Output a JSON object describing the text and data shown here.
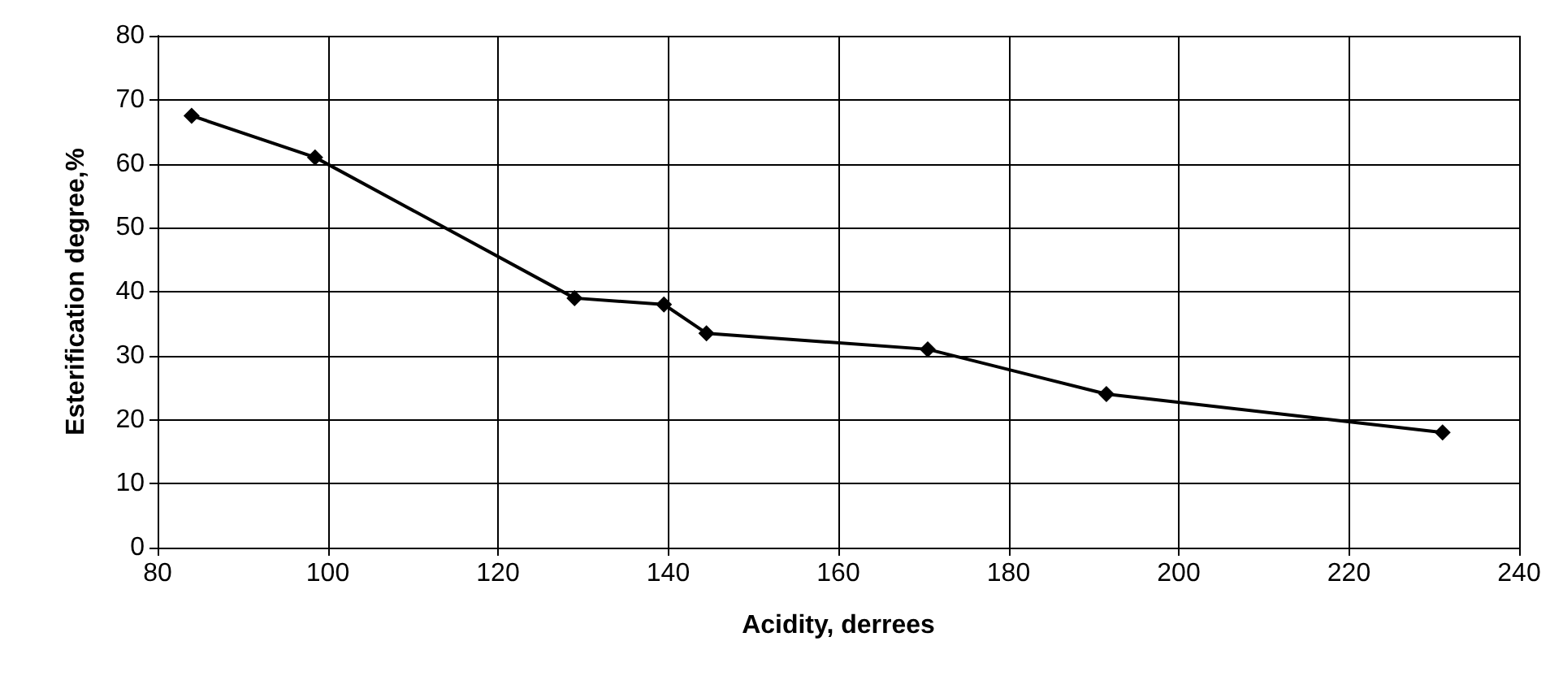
{
  "chart_data": {
    "type": "line",
    "xlabel": "Acidity, derrees",
    "ylabel": "Esterification degree,%",
    "x": [
      84,
      98.5,
      129,
      139.5,
      144.5,
      170.5,
      191.5,
      231
    ],
    "series": [
      {
        "color": "#000000",
        "values": [
          67.5,
          61,
          39,
          38,
          33.5,
          31,
          24,
          18
        ]
      }
    ],
    "xlim": [
      80,
      240
    ],
    "xticks": [
      80,
      100,
      120,
      140,
      160,
      180,
      200,
      220,
      240
    ],
    "ylim": [
      0,
      80
    ],
    "yticks": [
      0,
      10,
      20,
      30,
      40,
      50,
      60,
      70,
      80
    ],
    "grid": true,
    "marker": "diamond",
    "line_style": "solid"
  }
}
